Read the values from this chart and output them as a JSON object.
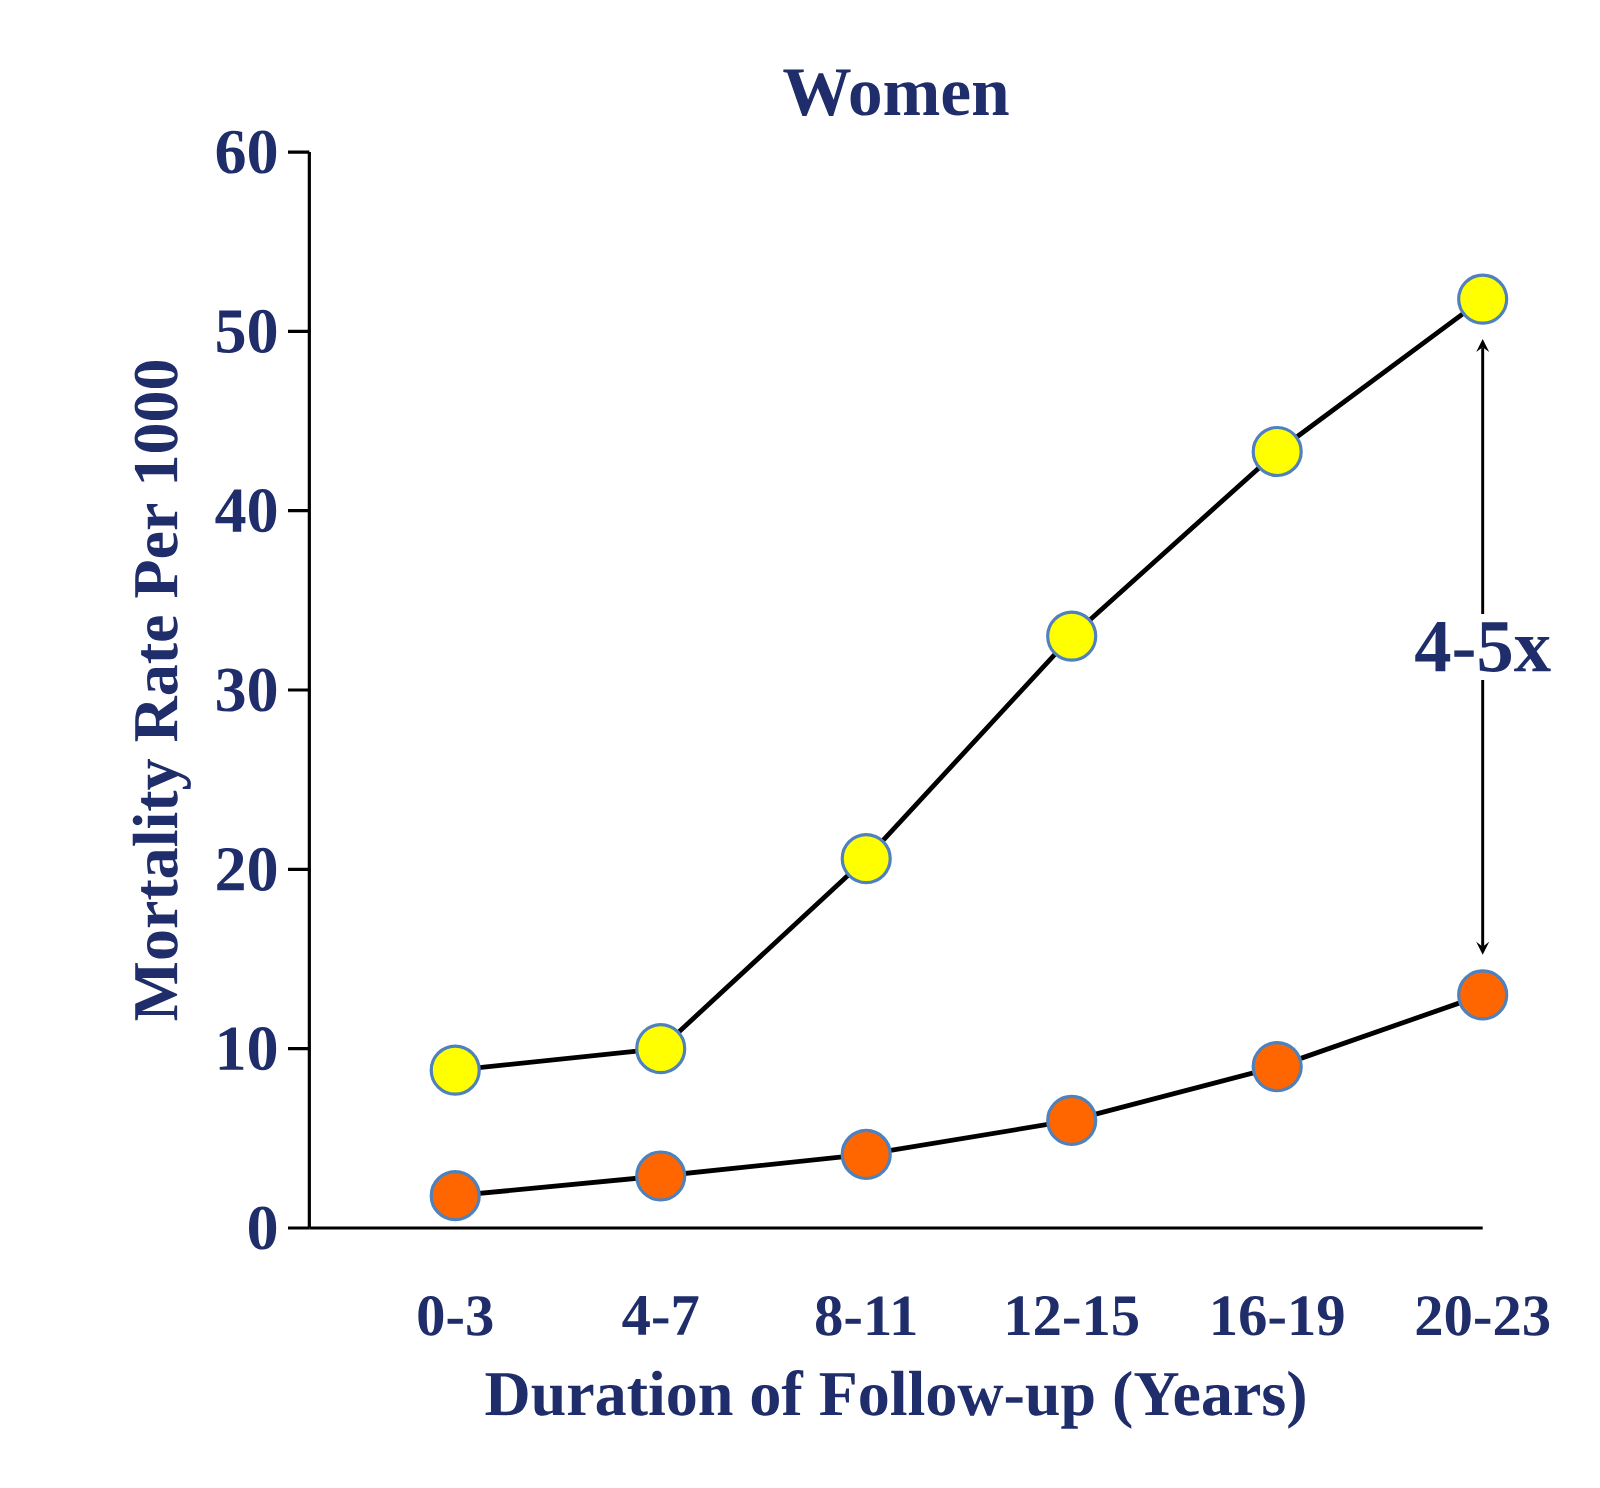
{
  "chart_data": {
    "type": "line",
    "title": "Women",
    "xlabel": "Duration of Follow-up (Years)",
    "ylabel": "Mortality Rate Per 1000",
    "categories": [
      "0-3",
      "4-7",
      "8-11",
      "12-15",
      "16-19",
      "20-23"
    ],
    "series": [
      {
        "color": "#ffff00",
        "values": [
          8.8,
          10.0,
          20.6,
          33.0,
          43.3,
          51.8
        ]
      },
      {
        "color": "#ff6600",
        "values": [
          1.8,
          2.9,
          4.1,
          6.0,
          9.0,
          13.0
        ]
      }
    ],
    "ylim": [
      0,
      60
    ],
    "yticks": [
      0,
      10,
      20,
      30,
      40,
      50,
      60
    ],
    "marker": "circle",
    "line_style": "solid",
    "grid": false,
    "annotations": [
      "4-5x"
    ]
  }
}
